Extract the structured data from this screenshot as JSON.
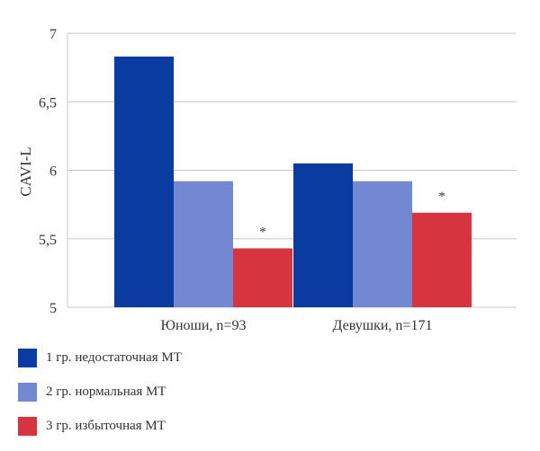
{
  "chart_data": {
    "type": "bar",
    "ylabel": "CAVI-L",
    "ylim": [
      5,
      7
    ],
    "yticks": [
      5,
      5.5,
      6,
      6.5,
      7
    ],
    "ytick_labels": [
      "5",
      "5,5",
      "6",
      "6,5",
      "7"
    ],
    "grid": true,
    "legend_position": "bottom-left",
    "categories": [
      "Юноши, n=93",
      "Девушки, n=171"
    ],
    "series": [
      {
        "name": "1 гр. недостаточная МТ",
        "color": "#0a3b9e",
        "values": [
          6.83,
          6.05
        ],
        "annotations": [
          "",
          ""
        ]
      },
      {
        "name": "2 гр. нормальная МТ",
        "color": "#7289d1",
        "values": [
          5.92,
          5.92
        ],
        "annotations": [
          "",
          ""
        ]
      },
      {
        "name": "3 гр. избыточная МТ",
        "color": "#d6343e",
        "values": [
          5.43,
          5.69
        ],
        "annotations": [
          "*",
          "*"
        ]
      }
    ]
  }
}
